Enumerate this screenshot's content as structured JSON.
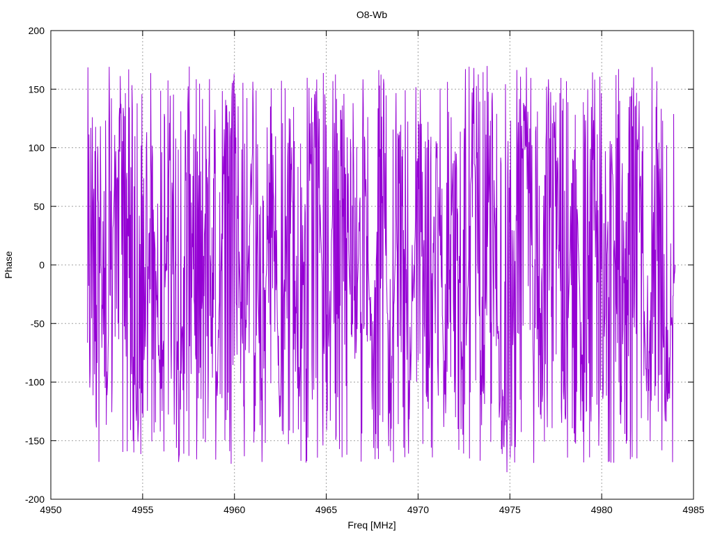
{
  "chart_data": {
    "type": "line",
    "title": "O8-Wb",
    "xlabel": "Freq [MHz]",
    "ylabel": "Phase",
    "xlim": [
      4950,
      4985
    ],
    "ylim": [
      -200,
      200
    ],
    "xticks": [
      4950,
      4955,
      4960,
      4965,
      4970,
      4975,
      4980,
      4985
    ],
    "yticks": [
      -200,
      -150,
      -100,
      -50,
      0,
      50,
      100,
      150,
      200
    ],
    "grid": true,
    "legend": "none",
    "series": [
      {
        "color": "#9400d3",
        "x_range": [
          4952,
          4984
        ],
        "x_step": 0.02,
        "x": [
          4952.0,
          4952.5,
          4953.0,
          4953.5,
          4954.0,
          4954.5,
          4955.0,
          4955.5,
          4956.0,
          4956.5,
          4957.0,
          4957.5,
          4958.0,
          4958.5,
          4959.0,
          4959.5,
          4960.0,
          4960.5,
          4961.0,
          4961.5,
          4962.0,
          4962.5,
          4963.0,
          4963.5,
          4964.0,
          4964.5,
          4965.0,
          4965.5,
          4966.0,
          4966.5,
          4967.0,
          4967.5,
          4968.0,
          4968.5,
          4969.0,
          4969.5,
          4970.0,
          4970.5,
          4971.0,
          4971.5,
          4972.0,
          4972.5,
          4973.0,
          4973.5,
          4974.0,
          4974.5,
          4975.0,
          4975.5,
          4976.0,
          4976.5,
          4977.0,
          4977.5,
          4978.0,
          4978.5,
          4979.0,
          4979.5,
          4980.0,
          4980.5,
          4981.0,
          4981.5,
          4982.0,
          4982.5,
          4983.0,
          4983.5,
          4984.0
        ],
        "y": [
          -40,
          138,
          -150,
          95,
          178,
          -170,
          -160,
          120,
          -165,
          155,
          -165,
          172,
          -170,
          110,
          -160,
          160,
          178,
          -140,
          150,
          -170,
          165,
          -160,
          170,
          -145,
          120,
          175,
          -165,
          170,
          150,
          -160,
          175,
          -130,
          175,
          -170,
          175,
          -160,
          125,
          -165,
          135,
          -150,
          165,
          -160,
          160,
          -165,
          170,
          -175,
          -180,
          150,
          130,
          -170,
          175,
          140,
          -178,
          170,
          -160,
          165,
          -165,
          150,
          -170,
          160,
          145,
          -150,
          160,
          -165,
          0
        ]
      }
    ]
  }
}
